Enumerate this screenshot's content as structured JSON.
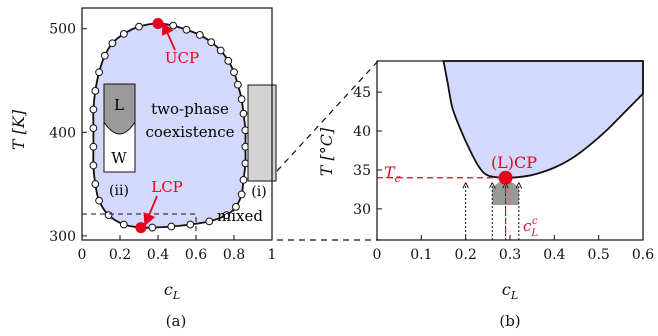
{
  "chart_data": [
    {
      "panel_label": "(a)",
      "type": "scatter",
      "xlabel": "c",
      "xlabel_sub": "L",
      "ylabel": "T [K]",
      "xlim": [
        0,
        1
      ],
      "ylim": [
        296,
        520
      ],
      "xticks": [
        "0",
        "0.2",
        "0.4",
        "0.6",
        "0.8",
        "1"
      ],
      "yticks": [
        "300",
        "400",
        "500"
      ],
      "region_label": "two-phase",
      "region_label_2": "coexistence",
      "mixed_label": "mixed",
      "phase_L_label": "L",
      "phase_W_label": "W",
      "inset_ii_label": "(ii)",
      "inset_i_label": "(i)",
      "ucp_label": "UCP",
      "lcp_label": "LCP",
      "ucp": {
        "x": 0.4,
        "y": 505
      },
      "lcp": {
        "x": 0.31,
        "y": 308
      },
      "boundary": [
        {
          "x": 0.4,
          "y": 505
        },
        {
          "x": 0.48,
          "y": 503
        },
        {
          "x": 0.55,
          "y": 499
        },
        {
          "x": 0.62,
          "y": 494
        },
        {
          "x": 0.68,
          "y": 487
        },
        {
          "x": 0.73,
          "y": 479
        },
        {
          "x": 0.77,
          "y": 469
        },
        {
          "x": 0.8,
          "y": 458
        },
        {
          "x": 0.82,
          "y": 446
        },
        {
          "x": 0.84,
          "y": 432
        },
        {
          "x": 0.85,
          "y": 418
        },
        {
          "x": 0.86,
          "y": 402
        },
        {
          "x": 0.86,
          "y": 386
        },
        {
          "x": 0.86,
          "y": 370
        },
        {
          "x": 0.85,
          "y": 354
        },
        {
          "x": 0.84,
          "y": 340
        },
        {
          "x": 0.81,
          "y": 328
        },
        {
          "x": 0.76,
          "y": 320
        },
        {
          "x": 0.67,
          "y": 314
        },
        {
          "x": 0.57,
          "y": 311
        },
        {
          "x": 0.47,
          "y": 309
        },
        {
          "x": 0.37,
          "y": 308
        },
        {
          "x": 0.31,
          "y": 308
        },
        {
          "x": 0.22,
          "y": 311
        },
        {
          "x": 0.14,
          "y": 320
        },
        {
          "x": 0.09,
          "y": 334
        },
        {
          "x": 0.07,
          "y": 350
        },
        {
          "x": 0.06,
          "y": 368
        },
        {
          "x": 0.06,
          "y": 386
        },
        {
          "x": 0.06,
          "y": 404
        },
        {
          "x": 0.06,
          "y": 422
        },
        {
          "x": 0.07,
          "y": 440
        },
        {
          "x": 0.09,
          "y": 458
        },
        {
          "x": 0.12,
          "y": 474
        },
        {
          "x": 0.16,
          "y": 486
        },
        {
          "x": 0.22,
          "y": 495
        },
        {
          "x": 0.3,
          "y": 502
        }
      ],
      "colors": {
        "region": "#d4d8fb",
        "critical": "#e8001c",
        "inset_L": "#9a9a9a",
        "inset_i": "#d3d3d3"
      }
    },
    {
      "panel_label": "(b)",
      "type": "line",
      "xlabel": "c",
      "xlabel_sub": "L",
      "ylabel": "T [°C]",
      "xlim": [
        0,
        0.6
      ],
      "ylim": [
        26,
        49
      ],
      "xticks": [
        "0",
        "0.1",
        "0.2",
        "0.3",
        "0.4",
        "0.5",
        "0.6"
      ],
      "yticks": [
        "30",
        "35",
        "40",
        "45"
      ],
      "critical_label": "(L)CP",
      "tc_label": "T",
      "tc_sub": "c",
      "clc_label": "c",
      "clc_sub": "L",
      "clc_sup": "c",
      "critical_point": {
        "x": 0.29,
        "y": 34
      },
      "coexistence_curve": [
        {
          "x": 0.15,
          "y": 49
        },
        {
          "x": 0.16,
          "y": 46
        },
        {
          "x": 0.17,
          "y": 43
        },
        {
          "x": 0.19,
          "y": 40
        },
        {
          "x": 0.21,
          "y": 37.5
        },
        {
          "x": 0.23,
          "y": 35.4
        },
        {
          "x": 0.25,
          "y": 34.3
        },
        {
          "x": 0.29,
          "y": 34
        },
        {
          "x": 0.33,
          "y": 34.15
        },
        {
          "x": 0.36,
          "y": 34.5
        },
        {
          "x": 0.4,
          "y": 35.3
        },
        {
          "x": 0.44,
          "y": 36.5
        },
        {
          "x": 0.48,
          "y": 38.2
        },
        {
          "x": 0.52,
          "y": 40.2
        },
        {
          "x": 0.56,
          "y": 42.5
        },
        {
          "x": 0.6,
          "y": 44.8
        }
      ],
      "quench_paths": [
        {
          "x": 0.2,
          "y_from": 26,
          "y_to": 33.3
        },
        {
          "x": 0.26,
          "y_from": 26,
          "y_to": 33.3
        },
        {
          "x": 0.29,
          "y_from": 26,
          "y_to": 33.3
        },
        {
          "x": 0.32,
          "y_from": 26,
          "y_to": 33.3
        }
      ],
      "colors": {
        "region": "#d4d8fb",
        "critical": "#e8001c",
        "quench_region": "#999999"
      }
    }
  ]
}
